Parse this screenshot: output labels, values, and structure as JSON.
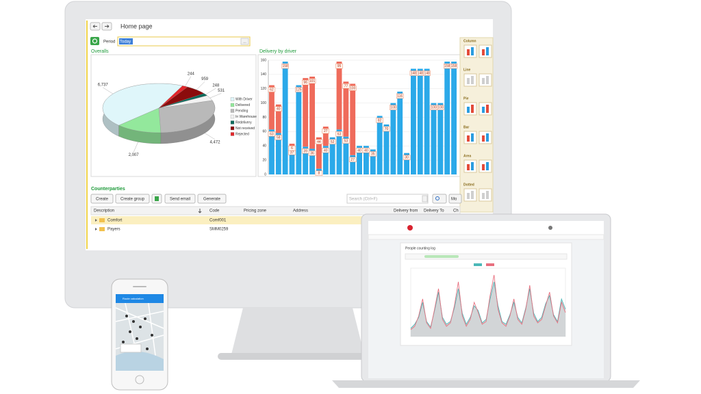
{
  "toolbar": {
    "title": "Home page"
  },
  "period": {
    "label": "Period",
    "value": "Today"
  },
  "palette": {
    "sections": [
      "Column",
      "Line",
      "Pie",
      "Bar",
      "Area",
      "Dotted"
    ]
  },
  "counterparties": {
    "title": "Counterparties",
    "buttons": [
      "Create",
      "Create group",
      "Send email",
      "Generate"
    ],
    "search_placeholder": "Search (Ctrl+F)",
    "more": "Mo"
  },
  "table": {
    "columns": [
      "Description",
      "Code",
      "Pricing zone",
      "Address",
      "Delivery from",
      "Delivery To",
      "Ch"
    ],
    "rows": [
      [
        "Comfort",
        "Comf001"
      ],
      [
        "Payers",
        "SMM0259"
      ]
    ]
  },
  "phone": {
    "title": "Route calculation"
  },
  "chart_data": [
    {
      "type": "pie",
      "title": "Overalls",
      "labels": [
        "With Driver",
        "Delivered",
        "Pending",
        "In Warehouse",
        "Redelivery",
        "Not received",
        "Rejected"
      ],
      "values": [
        6737,
        2007,
        4472,
        531,
        248,
        959,
        244
      ],
      "value_labels": [
        "6,737",
        "2,007",
        "4,472",
        "531",
        "248",
        "959",
        "244"
      ],
      "colors": [
        "#dff6fa",
        "#93e89c",
        "#b9b9b9",
        "#f2f2f2",
        "#0c6b5c",
        "#8b0c0c",
        "#e3262a"
      ]
    },
    {
      "type": "bar",
      "title": "Delivery by driver",
      "stacked": true,
      "categories": [
        null,
        null,
        null,
        null,
        null,
        null,
        null,
        null,
        null,
        null,
        null,
        null,
        null,
        null,
        null,
        null,
        null,
        null,
        null,
        null,
        null,
        null,
        null,
        null,
        null,
        null,
        null,
        null
      ],
      "series": [
        {
          "color": "#2ba9e9",
          "values": [
            63,
            58,
            158,
            37,
            125,
            39,
            36,
            8,
            40,
            52,
            63,
            53,
            27,
            40,
            40,
            35,
            82,
            70,
            100,
            116,
            30,
            148,
            148,
            148,
            100,
            100,
            158,
            158
          ]
        },
        {
          "color": "#ef6b5b",
          "values": [
            62,
            40,
            0,
            6,
            0,
            96,
            101,
            44,
            27,
            0,
            95,
            77,
            100,
            0,
            0,
            0,
            0,
            0,
            0,
            0,
            0,
            0,
            0,
            0,
            0,
            0,
            0,
            0
          ]
        }
      ],
      "ylim": [
        0,
        160
      ],
      "yticks": [
        0,
        20,
        40,
        60,
        80,
        100,
        120,
        140,
        160
      ],
      "grid": true
    },
    {
      "type": "line",
      "title": "People counting log",
      "series": [
        {
          "color": "#4bb8b8",
          "values": [
            12,
            18,
            28,
            50,
            22,
            14,
            38,
            65,
            28,
            18,
            22,
            42,
            70,
            34,
            18,
            28,
            45,
            38,
            20,
            25,
            55,
            80,
            45,
            22,
            18,
            32,
            50,
            28,
            20,
            42,
            70,
            34,
            22,
            28,
            48,
            60,
            32,
            22,
            55,
            40
          ]
        },
        {
          "color": "#e8707f",
          "values": [
            10,
            15,
            30,
            55,
            20,
            12,
            40,
            70,
            25,
            15,
            20,
            45,
            80,
            30,
            15,
            25,
            50,
            35,
            18,
            22,
            60,
            90,
            40,
            20,
            15,
            30,
            55,
            25,
            18,
            40,
            75,
            30,
            20,
            25,
            45,
            65,
            30,
            20,
            50,
            35
          ]
        }
      ],
      "ylim": [
        0,
        100
      ]
    }
  ]
}
